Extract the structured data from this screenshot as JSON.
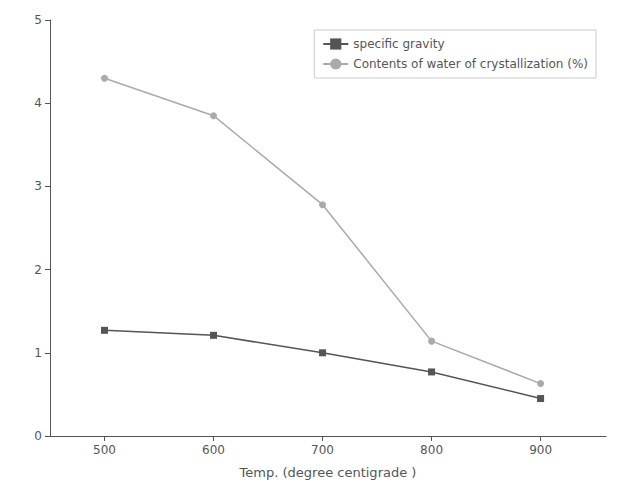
{
  "chart_data": {
    "type": "line",
    "xlabel": "Temp. (degree centigrade )",
    "x": [
      500,
      600,
      700,
      800,
      900
    ],
    "series": [
      {
        "name": "specific gravity",
        "color": "#555555",
        "marker": "square",
        "values": [
          1.27,
          1.21,
          1.0,
          0.77,
          0.45
        ]
      },
      {
        "name": "Contents of water of crystallization (%)",
        "color": "#aaaaaa",
        "marker": "circle",
        "values": [
          4.3,
          3.85,
          2.78,
          1.14,
          0.63
        ]
      }
    ],
    "xlim": [
      450,
      960
    ],
    "xticks": [
      500,
      600,
      700,
      800,
      900
    ],
    "ylim": [
      0,
      5
    ],
    "yticks": [
      0,
      1,
      2,
      3,
      4,
      5
    ],
    "grid": false,
    "legend": "upper right"
  }
}
